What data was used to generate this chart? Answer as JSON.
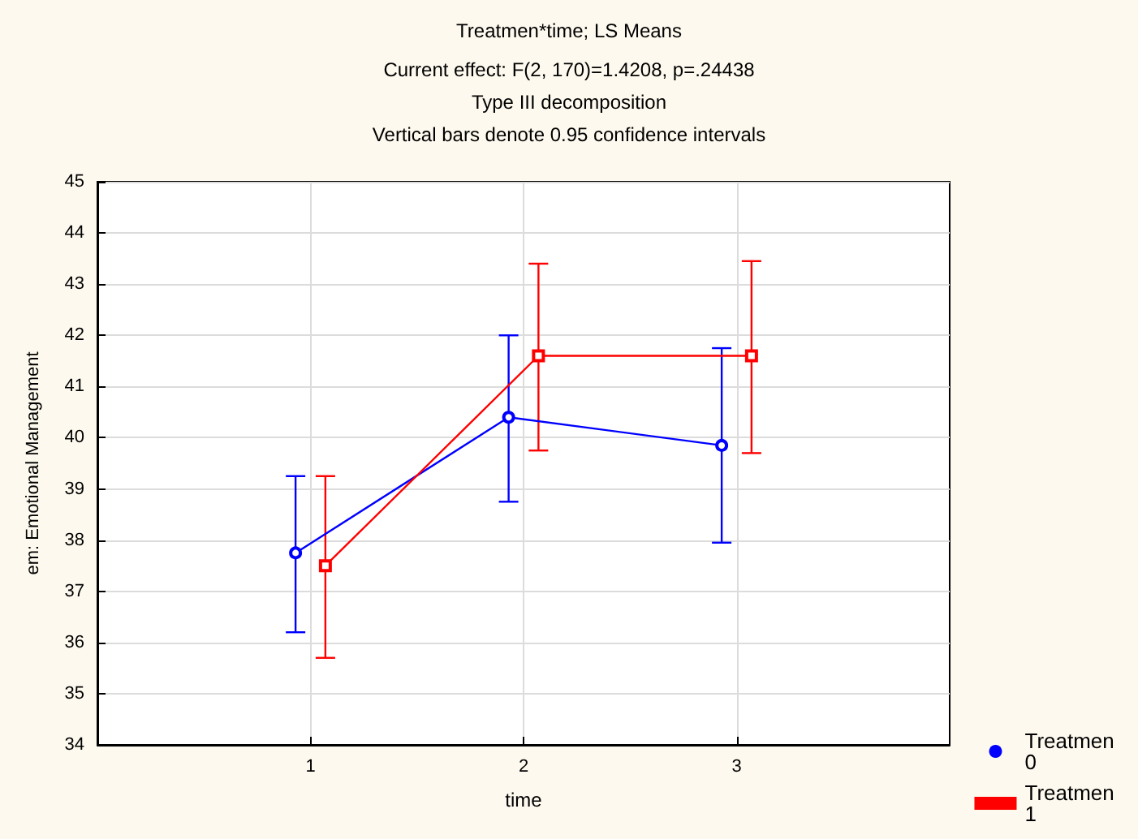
{
  "chart_data": {
    "type": "line",
    "title": "Treatmen*time; LS Means",
    "subtitle": "Current effect: F(2, 170)=1.4208, p=.24438\nType III decomposition\nVertical bars denote 0.95 confidence intervals",
    "xlabel": "time",
    "ylabel": "em: Emotional Management",
    "series": [
      {
        "name": "Treatmen 0",
        "color": "#0000ff",
        "marker": "circle",
        "x": [
          0.93,
          1.93,
          2.93
        ],
        "values": [
          37.75,
          40.4,
          39.85
        ],
        "errors": [
          [
            36.2,
            39.25
          ],
          [
            38.75,
            42.0
          ],
          [
            37.95,
            41.75
          ]
        ]
      },
      {
        "name": "Treatmen 1",
        "color": "#ff0000",
        "marker": "square",
        "x": [
          1.07,
          2.07,
          3.07
        ],
        "values": [
          37.5,
          41.6,
          41.6
        ],
        "errors": [
          [
            35.7,
            39.25
          ],
          [
            39.75,
            43.4
          ],
          [
            39.7,
            43.45
          ]
        ]
      }
    ],
    "xlim": [
      0,
      4
    ],
    "xticks": [
      1,
      2,
      3
    ],
    "ylim": [
      34,
      45
    ],
    "yticks": [
      34,
      35,
      36,
      37,
      38,
      39,
      40,
      41,
      42,
      43,
      44,
      45
    ],
    "grid": true,
    "legend": "bottom right",
    "line_style": "solid"
  }
}
